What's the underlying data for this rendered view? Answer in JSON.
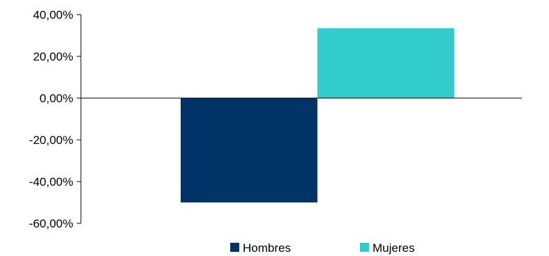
{
  "chart_data": {
    "type": "bar",
    "title": "",
    "xlabel": "",
    "ylabel": "",
    "ylim": [
      -60,
      40
    ],
    "yticks": [
      40,
      20,
      0,
      -20,
      -40,
      -60
    ],
    "ytick_labels": [
      "40,00%",
      "20,00%",
      "0,00%",
      "-20,00%",
      "-40,00%",
      "-60,00%"
    ],
    "grid": false,
    "legend_position": "bottom",
    "series": [
      {
        "name": "Hombres",
        "values": [
          -50
        ],
        "color": "#003366"
      },
      {
        "name": "Mujeres",
        "values": [
          33.5
        ],
        "color": "#33CCCC"
      }
    ]
  }
}
